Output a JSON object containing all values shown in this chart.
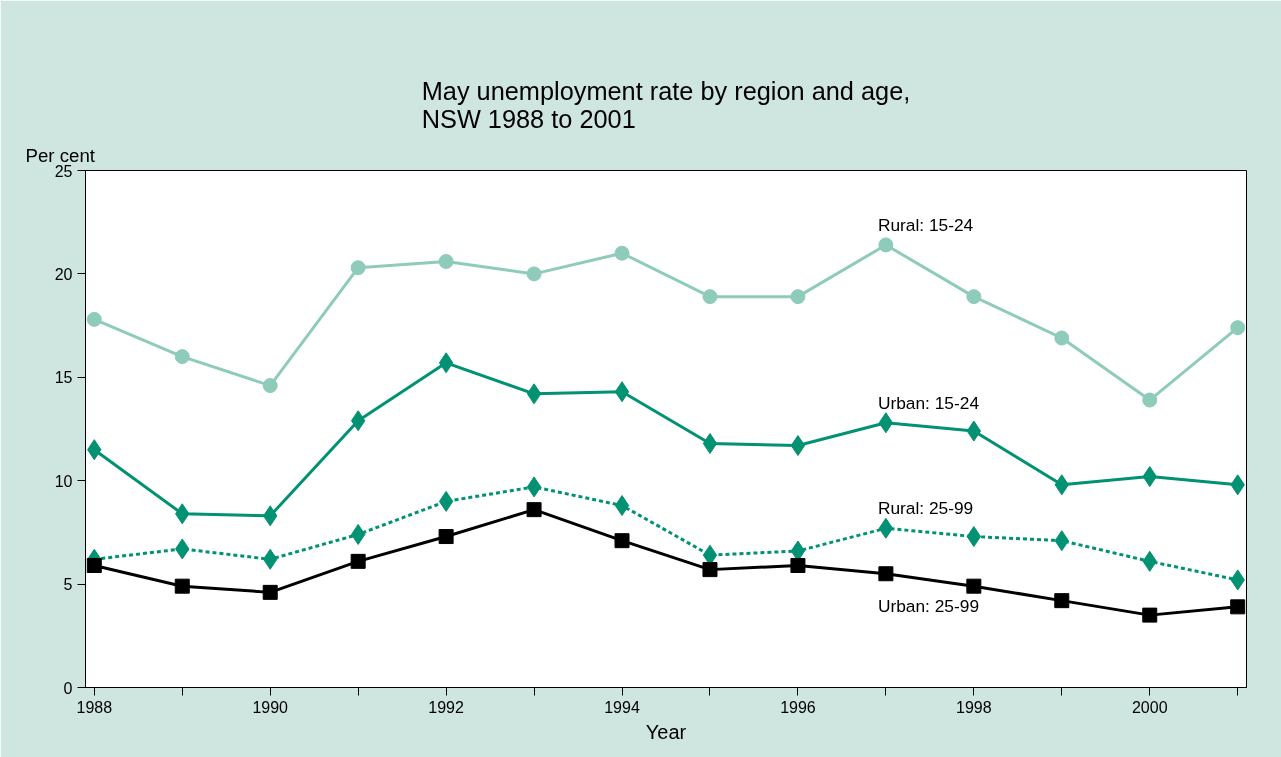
{
  "chart_data": {
    "type": "line",
    "title": "May unemployment rate by region and age,\nNSW 1988 to 2001",
    "xlabel": "Year",
    "ylabel": "Per cent",
    "x": [
      1988,
      1989,
      1990,
      1991,
      1992,
      1993,
      1994,
      1995,
      1996,
      1997,
      1998,
      1999,
      2000,
      2001
    ],
    "xlim": [
      1987.9,
      2001.1
    ],
    "xticks": [
      1988,
      {
        "value": 1989,
        "label": null
      },
      1990,
      {
        "value": 1991,
        "label": null
      },
      1992,
      {
        "value": 1993,
        "label": null
      },
      1994,
      {
        "value": 1995,
        "label": null
      },
      1996,
      {
        "value": 1997,
        "label": null
      },
      1998,
      {
        "value": 1999,
        "label": null
      },
      2000,
      {
        "value": 2001,
        "label": null
      }
    ],
    "ylim": [
      0,
      25
    ],
    "yticks": [
      0,
      5,
      10,
      15,
      20,
      25
    ],
    "grid": false,
    "legend": false,
    "series": [
      {
        "name": "Rural: 15-24",
        "color": "#8ecbbb",
        "marker": "circle",
        "line_style": "solid",
        "values": [
          17.8,
          16.0,
          14.6,
          20.3,
          20.6,
          20.0,
          21.0,
          18.9,
          18.9,
          21.4,
          18.9,
          16.9,
          13.9,
          17.4
        ]
      },
      {
        "name": "Urban: 15-24",
        "color": "#009272",
        "marker": "diamond",
        "line_style": "solid",
        "values": [
          11.5,
          8.4,
          8.3,
          12.9,
          15.7,
          14.2,
          14.3,
          11.8,
          11.7,
          12.8,
          12.4,
          9.8,
          10.2,
          9.8
        ]
      },
      {
        "name": "Rural: 25-99",
        "color": "#009272",
        "marker": "diamond",
        "line_style": "dashed",
        "values": [
          6.2,
          6.7,
          6.2,
          7.4,
          9.0,
          9.7,
          8.8,
          6.4,
          6.6,
          7.7,
          7.3,
          7.1,
          6.1,
          5.2
        ]
      },
      {
        "name": "Urban: 25-99",
        "color": "#000000",
        "marker": "square",
        "line_style": "solid",
        "values": [
          5.9,
          4.9,
          4.6,
          6.1,
          7.3,
          8.6,
          7.1,
          5.7,
          5.9,
          5.5,
          4.9,
          4.2,
          3.5,
          3.9
        ]
      }
    ]
  }
}
